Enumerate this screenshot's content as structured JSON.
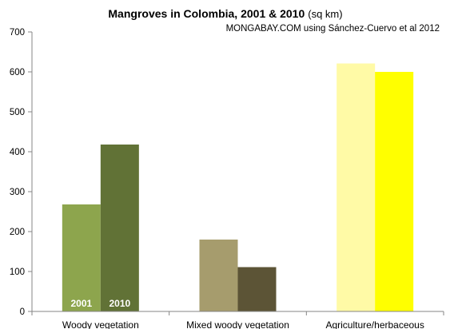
{
  "chart_data": {
    "type": "bar",
    "title": "Mangroves in Colombia, 2001 & 2010",
    "title_unit": "(sq km)",
    "source": "MONGABAY.COM using Sánchez-Cuervo et al 2012",
    "categories": [
      "Woody vegetation",
      "Mixed woody vegetation",
      "Agriculture/herbaceous"
    ],
    "series": [
      {
        "name": "2001",
        "values": [
          268,
          180,
          621
        ]
      },
      {
        "name": "2010",
        "values": [
          418,
          111,
          600
        ]
      }
    ],
    "bar_colors": [
      [
        "#8da54d",
        "#617236"
      ],
      [
        "#a69c6d",
        "#5c5436"
      ],
      [
        "#fffaa6",
        "#ffff00"
      ]
    ],
    "bar_labels": [
      "2001",
      "2010"
    ],
    "ylim": [
      0,
      700
    ],
    "yticks": [
      0,
      100,
      200,
      300,
      400,
      500,
      600,
      700
    ],
    "grid": false,
    "legend": "none"
  }
}
